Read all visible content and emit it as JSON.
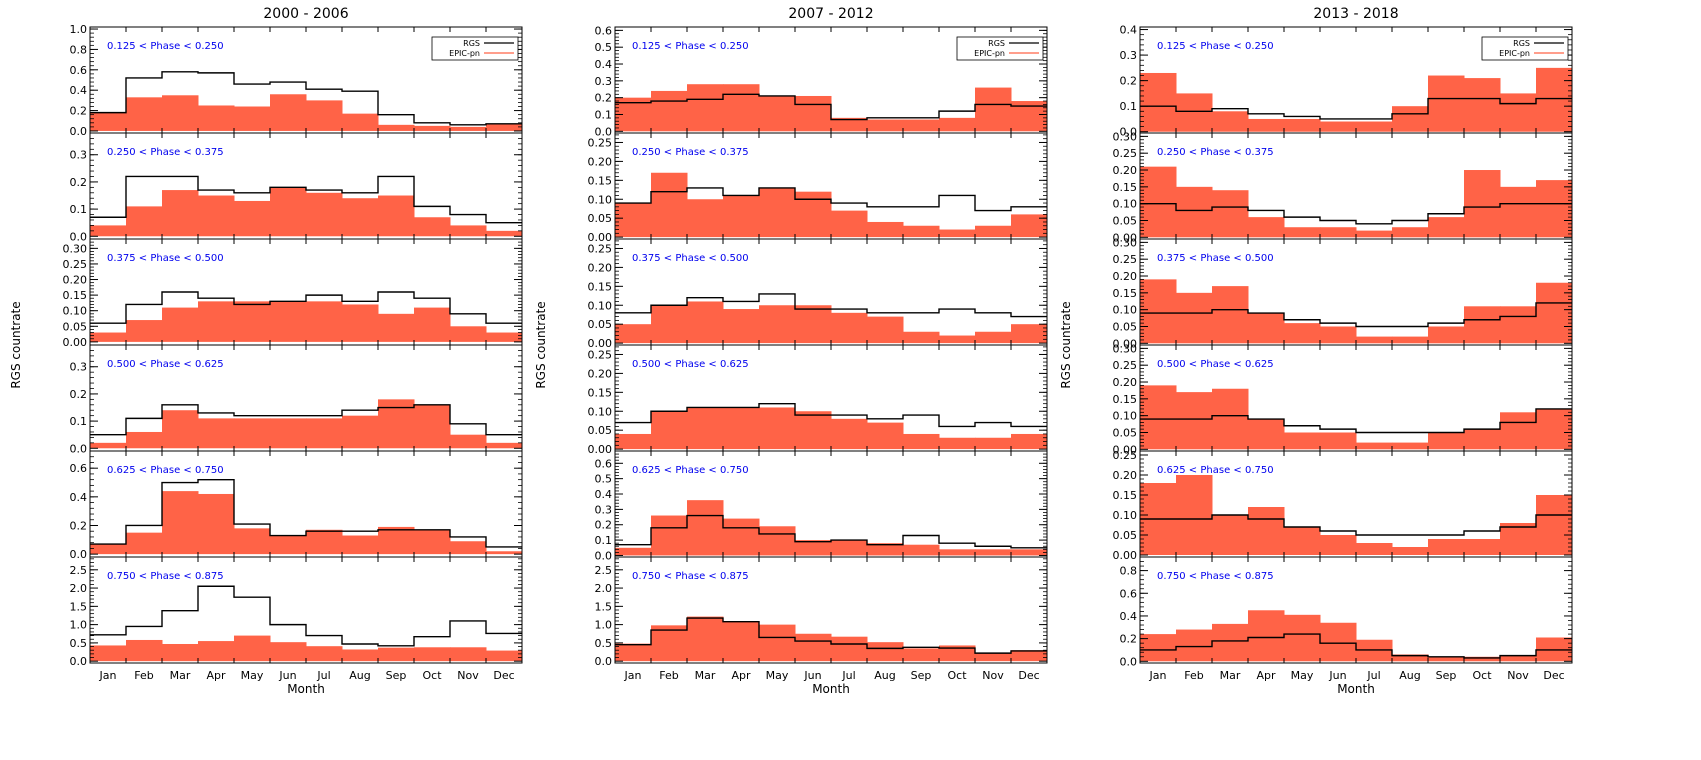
{
  "chart_data": {
    "type": "histogram-grid",
    "months": [
      "Jan",
      "Feb",
      "Mar",
      "Apr",
      "May",
      "Jun",
      "Jul",
      "Aug",
      "Sep",
      "Oct",
      "Nov",
      "Dec"
    ],
    "xlabel": "Month",
    "ylabel": "RGS countrate",
    "legend": {
      "series": [
        "RGS",
        "EPIC-pn"
      ],
      "placement": "top-right"
    },
    "colors": {
      "epic_fill": "#ff6347",
      "rgs_line": "#000000",
      "phase_text": "#0000ee"
    },
    "columns": [
      {
        "title": "2000 - 2006",
        "show_legend": true,
        "panels": [
          {
            "label": "0.125 < Phase < 0.250",
            "ylim": [
              -0.02,
              1.02
            ],
            "yticks": [
              0.0,
              0.2,
              0.4,
              0.6,
              0.8,
              1.0
            ],
            "ytick_labels": [
              "0.0",
              "0.2",
              "0.4",
              "0.6",
              "0.8",
              "1.0"
            ],
            "rgs": [
              0.18,
              0.52,
              0.58,
              0.57,
              0.46,
              0.48,
              0.41,
              0.39,
              0.16,
              0.08,
              0.06,
              0.07
            ],
            "epic": [
              0.18,
              0.33,
              0.35,
              0.25,
              0.24,
              0.36,
              0.3,
              0.17,
              0.06,
              0.05,
              0.04,
              0.07
            ]
          },
          {
            "label": "0.250 < Phase < 0.375",
            "ylim": [
              -0.01,
              0.38
            ],
            "yticks": [
              0.0,
              0.1,
              0.2,
              0.3
            ],
            "ytick_labels": [
              "0.0",
              "0.1",
              "0.2",
              "0.3"
            ],
            "rgs": [
              0.07,
              0.22,
              0.22,
              0.17,
              0.16,
              0.18,
              0.17,
              0.16,
              0.22,
              0.11,
              0.08,
              0.05
            ],
            "epic": [
              0.04,
              0.11,
              0.17,
              0.15,
              0.13,
              0.18,
              0.16,
              0.14,
              0.15,
              0.07,
              0.04,
              0.02
            ]
          },
          {
            "label": "0.375 < Phase < 0.500",
            "ylim": [
              -0.01,
              0.33
            ],
            "yticks": [
              0.0,
              0.05,
              0.1,
              0.15,
              0.2,
              0.25,
              0.3
            ],
            "ytick_labels": [
              "0.00",
              "0.05",
              "0.10",
              "0.15",
              "0.20",
              "0.25",
              "0.30"
            ],
            "rgs": [
              0.06,
              0.12,
              0.16,
              0.14,
              0.12,
              0.13,
              0.15,
              0.13,
              0.16,
              0.14,
              0.09,
              0.06
            ],
            "epic": [
              0.03,
              0.07,
              0.11,
              0.13,
              0.13,
              0.13,
              0.13,
              0.12,
              0.09,
              0.11,
              0.05,
              0.03
            ]
          },
          {
            "label": "0.500 < Phase < 0.625",
            "ylim": [
              -0.01,
              0.38
            ],
            "yticks": [
              0.0,
              0.1,
              0.2,
              0.3
            ],
            "ytick_labels": [
              "0.0",
              "0.1",
              "0.2",
              "0.3"
            ],
            "rgs": [
              0.05,
              0.11,
              0.16,
              0.13,
              0.12,
              0.12,
              0.12,
              0.14,
              0.15,
              0.16,
              0.09,
              0.05
            ],
            "epic": [
              0.02,
              0.06,
              0.14,
              0.11,
              0.11,
              0.11,
              0.11,
              0.12,
              0.18,
              0.16,
              0.05,
              0.02
            ]
          },
          {
            "label": "0.625 < Phase < 0.750",
            "ylim": [
              -0.02,
              0.72
            ],
            "yticks": [
              0.0,
              0.2,
              0.4,
              0.6
            ],
            "ytick_labels": [
              "0.0",
              "0.2",
              "0.4",
              "0.6"
            ],
            "rgs": [
              0.07,
              0.2,
              0.5,
              0.52,
              0.21,
              0.13,
              0.16,
              0.16,
              0.17,
              0.17,
              0.12,
              0.05
            ],
            "epic": [
              0.07,
              0.15,
              0.44,
              0.42,
              0.18,
              0.13,
              0.17,
              0.13,
              0.19,
              0.17,
              0.09,
              0.02
            ]
          },
          {
            "label": "0.750 < Phase < 0.875",
            "ylim": [
              -0.05,
              2.85
            ],
            "yticks": [
              0.0,
              0.5,
              1.0,
              1.5,
              2.0,
              2.5
            ],
            "ytick_labels": [
              "0.0",
              "0.5",
              "1.0",
              "1.5",
              "2.0",
              "2.5"
            ],
            "rgs": [
              0.72,
              0.95,
              1.38,
              2.05,
              1.75,
              1.0,
              0.7,
              0.47,
              0.42,
              0.67,
              1.1,
              0.76
            ],
            "epic": [
              0.43,
              0.58,
              0.47,
              0.55,
              0.7,
              0.52,
              0.41,
              0.32,
              0.37,
              0.38,
              0.38,
              0.29
            ]
          }
        ]
      },
      {
        "title": "2007 - 2012",
        "show_legend": true,
        "panels": [
          {
            "label": "0.125 < Phase < 0.250",
            "ylim": [
              -0.01,
              0.62
            ],
            "yticks": [
              0.0,
              0.1,
              0.2,
              0.3,
              0.4,
              0.5,
              0.6
            ],
            "ytick_labels": [
              "0.0",
              "0.1",
              "0.2",
              "0.3",
              "0.4",
              "0.5",
              "0.6"
            ],
            "rgs": [
              0.17,
              0.18,
              0.19,
              0.22,
              0.21,
              0.16,
              0.07,
              0.08,
              0.08,
              0.12,
              0.16,
              0.15
            ],
            "epic": [
              0.2,
              0.24,
              0.28,
              0.28,
              0.21,
              0.21,
              0.08,
              0.07,
              0.07,
              0.08,
              0.26,
              0.18
            ]
          },
          {
            "label": "0.250 < Phase < 0.375",
            "ylim": [
              -0.005,
              0.275
            ],
            "yticks": [
              0.0,
              0.05,
              0.1,
              0.15,
              0.2,
              0.25
            ],
            "ytick_labels": [
              "0.00",
              "0.05",
              "0.10",
              "0.15",
              "0.20",
              "0.25"
            ],
            "rgs": [
              0.09,
              0.12,
              0.13,
              0.11,
              0.13,
              0.1,
              0.09,
              0.08,
              0.08,
              0.11,
              0.07,
              0.08
            ],
            "epic": [
              0.09,
              0.17,
              0.1,
              0.11,
              0.13,
              0.12,
              0.07,
              0.04,
              0.03,
              0.02,
              0.03,
              0.06
            ]
          },
          {
            "label": "0.375 < Phase < 0.500",
            "ylim": [
              -0.005,
              0.275
            ],
            "yticks": [
              0.0,
              0.05,
              0.1,
              0.15,
              0.2,
              0.25
            ],
            "ytick_labels": [
              "0.00",
              "0.05",
              "0.10",
              "0.15",
              "0.20",
              "0.25"
            ],
            "rgs": [
              0.08,
              0.1,
              0.12,
              0.11,
              0.13,
              0.09,
              0.09,
              0.08,
              0.08,
              0.09,
              0.08,
              0.07
            ],
            "epic": [
              0.05,
              0.1,
              0.11,
              0.09,
              0.1,
              0.1,
              0.08,
              0.07,
              0.03,
              0.02,
              0.03,
              0.05
            ]
          },
          {
            "label": "0.500 < Phase < 0.625",
            "ylim": [
              -0.005,
              0.275
            ],
            "yticks": [
              0.0,
              0.05,
              0.1,
              0.15,
              0.2,
              0.25
            ],
            "ytick_labels": [
              "0.00",
              "0.05",
              "0.10",
              "0.15",
              "0.20",
              "0.25"
            ],
            "rgs": [
              0.07,
              0.1,
              0.11,
              0.11,
              0.12,
              0.09,
              0.09,
              0.08,
              0.09,
              0.06,
              0.07,
              0.06
            ],
            "epic": [
              0.04,
              0.1,
              0.11,
              0.11,
              0.11,
              0.1,
              0.08,
              0.07,
              0.04,
              0.03,
              0.03,
              0.04
            ]
          },
          {
            "label": "0.625 < Phase < 0.750",
            "ylim": [
              -0.01,
              0.68
            ],
            "yticks": [
              0.0,
              0.1,
              0.2,
              0.3,
              0.4,
              0.5,
              0.6
            ],
            "ytick_labels": [
              "0.0",
              "0.1",
              "0.2",
              "0.3",
              "0.4",
              "0.5",
              "0.6"
            ],
            "rgs": [
              0.07,
              0.18,
              0.26,
              0.18,
              0.14,
              0.09,
              0.1,
              0.07,
              0.13,
              0.08,
              0.06,
              0.05
            ],
            "epic": [
              0.05,
              0.26,
              0.36,
              0.24,
              0.19,
              0.1,
              0.1,
              0.08,
              0.07,
              0.04,
              0.04,
              0.04
            ]
          },
          {
            "label": "0.750 < Phase < 0.875",
            "ylim": [
              -0.05,
              2.85
            ],
            "yticks": [
              0.0,
              0.5,
              1.0,
              1.5,
              2.0,
              2.5
            ],
            "ytick_labels": [
              "0.0",
              "0.5",
              "1.0",
              "1.5",
              "2.0",
              "2.5"
            ],
            "rgs": [
              0.45,
              0.85,
              1.18,
              1.08,
              0.65,
              0.55,
              0.47,
              0.35,
              0.38,
              0.36,
              0.22,
              0.28
            ],
            "epic": [
              0.48,
              0.98,
              1.22,
              1.08,
              1.0,
              0.75,
              0.67,
              0.52,
              0.35,
              0.43,
              0.22,
              0.3
            ]
          }
        ]
      },
      {
        "title": "2013 - 2018",
        "show_legend": true,
        "panels": [
          {
            "label": "0.125 < Phase < 0.250",
            "ylim": [
              -0.005,
              0.41
            ],
            "yticks": [
              0.0,
              0.1,
              0.2,
              0.3,
              0.4
            ],
            "ytick_labels": [
              "0.0",
              "0.1",
              "0.2",
              "0.3",
              "0.4"
            ],
            "rgs": [
              0.1,
              0.08,
              0.09,
              0.07,
              0.06,
              0.05,
              0.05,
              0.07,
              0.13,
              0.13,
              0.11,
              0.13
            ],
            "epic": [
              0.23,
              0.15,
              0.08,
              0.05,
              0.05,
              0.04,
              0.04,
              0.1,
              0.22,
              0.21,
              0.15,
              0.25
            ]
          },
          {
            "label": "0.250 < Phase < 0.375",
            "ylim": [
              -0.005,
              0.31
            ],
            "yticks": [
              0.0,
              0.05,
              0.1,
              0.15,
              0.2,
              0.25,
              0.3
            ],
            "ytick_labels": [
              "0.00",
              "0.05",
              "0.10",
              "0.15",
              "0.20",
              "0.25",
              "0.30"
            ],
            "rgs": [
              0.1,
              0.08,
              0.09,
              0.08,
              0.06,
              0.05,
              0.04,
              0.05,
              0.07,
              0.09,
              0.1,
              0.1
            ],
            "epic": [
              0.21,
              0.15,
              0.14,
              0.06,
              0.03,
              0.03,
              0.02,
              0.03,
              0.06,
              0.2,
              0.15,
              0.17
            ]
          },
          {
            "label": "0.375 < Phase < 0.500",
            "ylim": [
              -0.005,
              0.31
            ],
            "yticks": [
              0.0,
              0.05,
              0.1,
              0.15,
              0.2,
              0.25,
              0.3
            ],
            "ytick_labels": [
              "0.00",
              "0.05",
              "0.10",
              "0.15",
              "0.20",
              "0.25",
              "0.30"
            ],
            "rgs": [
              0.09,
              0.09,
              0.1,
              0.09,
              0.07,
              0.06,
              0.05,
              0.05,
              0.06,
              0.07,
              0.08,
              0.12
            ],
            "epic": [
              0.19,
              0.15,
              0.17,
              0.09,
              0.06,
              0.05,
              0.02,
              0.02,
              0.05,
              0.11,
              0.11,
              0.18
            ]
          },
          {
            "label": "0.500 < Phase < 0.625",
            "ylim": [
              -0.005,
              0.31
            ],
            "yticks": [
              0.0,
              0.05,
              0.1,
              0.15,
              0.2,
              0.25,
              0.3
            ],
            "ytick_labels": [
              "0.00",
              "0.05",
              "0.10",
              "0.15",
              "0.20",
              "0.25",
              "0.30"
            ],
            "rgs": [
              0.09,
              0.09,
              0.1,
              0.09,
              0.07,
              0.06,
              0.05,
              0.05,
              0.05,
              0.06,
              0.08,
              0.12
            ],
            "epic": [
              0.19,
              0.17,
              0.18,
              0.09,
              0.05,
              0.05,
              0.02,
              0.02,
              0.05,
              0.06,
              0.11,
              0.12
            ]
          },
          {
            "label": "0.625 < Phase < 0.750",
            "ylim": [
              -0.005,
              0.26
            ],
            "yticks": [
              0.0,
              0.05,
              0.1,
              0.15,
              0.2,
              0.25
            ],
            "ytick_labels": [
              "0.00",
              "0.05",
              "0.10",
              "0.15",
              "0.20",
              "0.25"
            ],
            "rgs": [
              0.09,
              0.09,
              0.1,
              0.09,
              0.07,
              0.06,
              0.05,
              0.05,
              0.05,
              0.06,
              0.07,
              0.1
            ],
            "epic": [
              0.18,
              0.2,
              0.1,
              0.12,
              0.07,
              0.05,
              0.03,
              0.02,
              0.04,
              0.04,
              0.08,
              0.15
            ]
          },
          {
            "label": "0.750 < Phase < 0.875",
            "ylim": [
              -0.015,
              0.92
            ],
            "yticks": [
              0.0,
              0.2,
              0.4,
              0.6,
              0.8
            ],
            "ytick_labels": [
              "0.0",
              "0.2",
              "0.4",
              "0.6",
              "0.8"
            ],
            "rgs": [
              0.1,
              0.13,
              0.18,
              0.21,
              0.24,
              0.16,
              0.1,
              0.05,
              0.04,
              0.03,
              0.05,
              0.1
            ],
            "epic": [
              0.24,
              0.28,
              0.33,
              0.45,
              0.41,
              0.34,
              0.19,
              0.06,
              0.04,
              0.04,
              0.05,
              0.21
            ]
          }
        ]
      }
    ]
  }
}
